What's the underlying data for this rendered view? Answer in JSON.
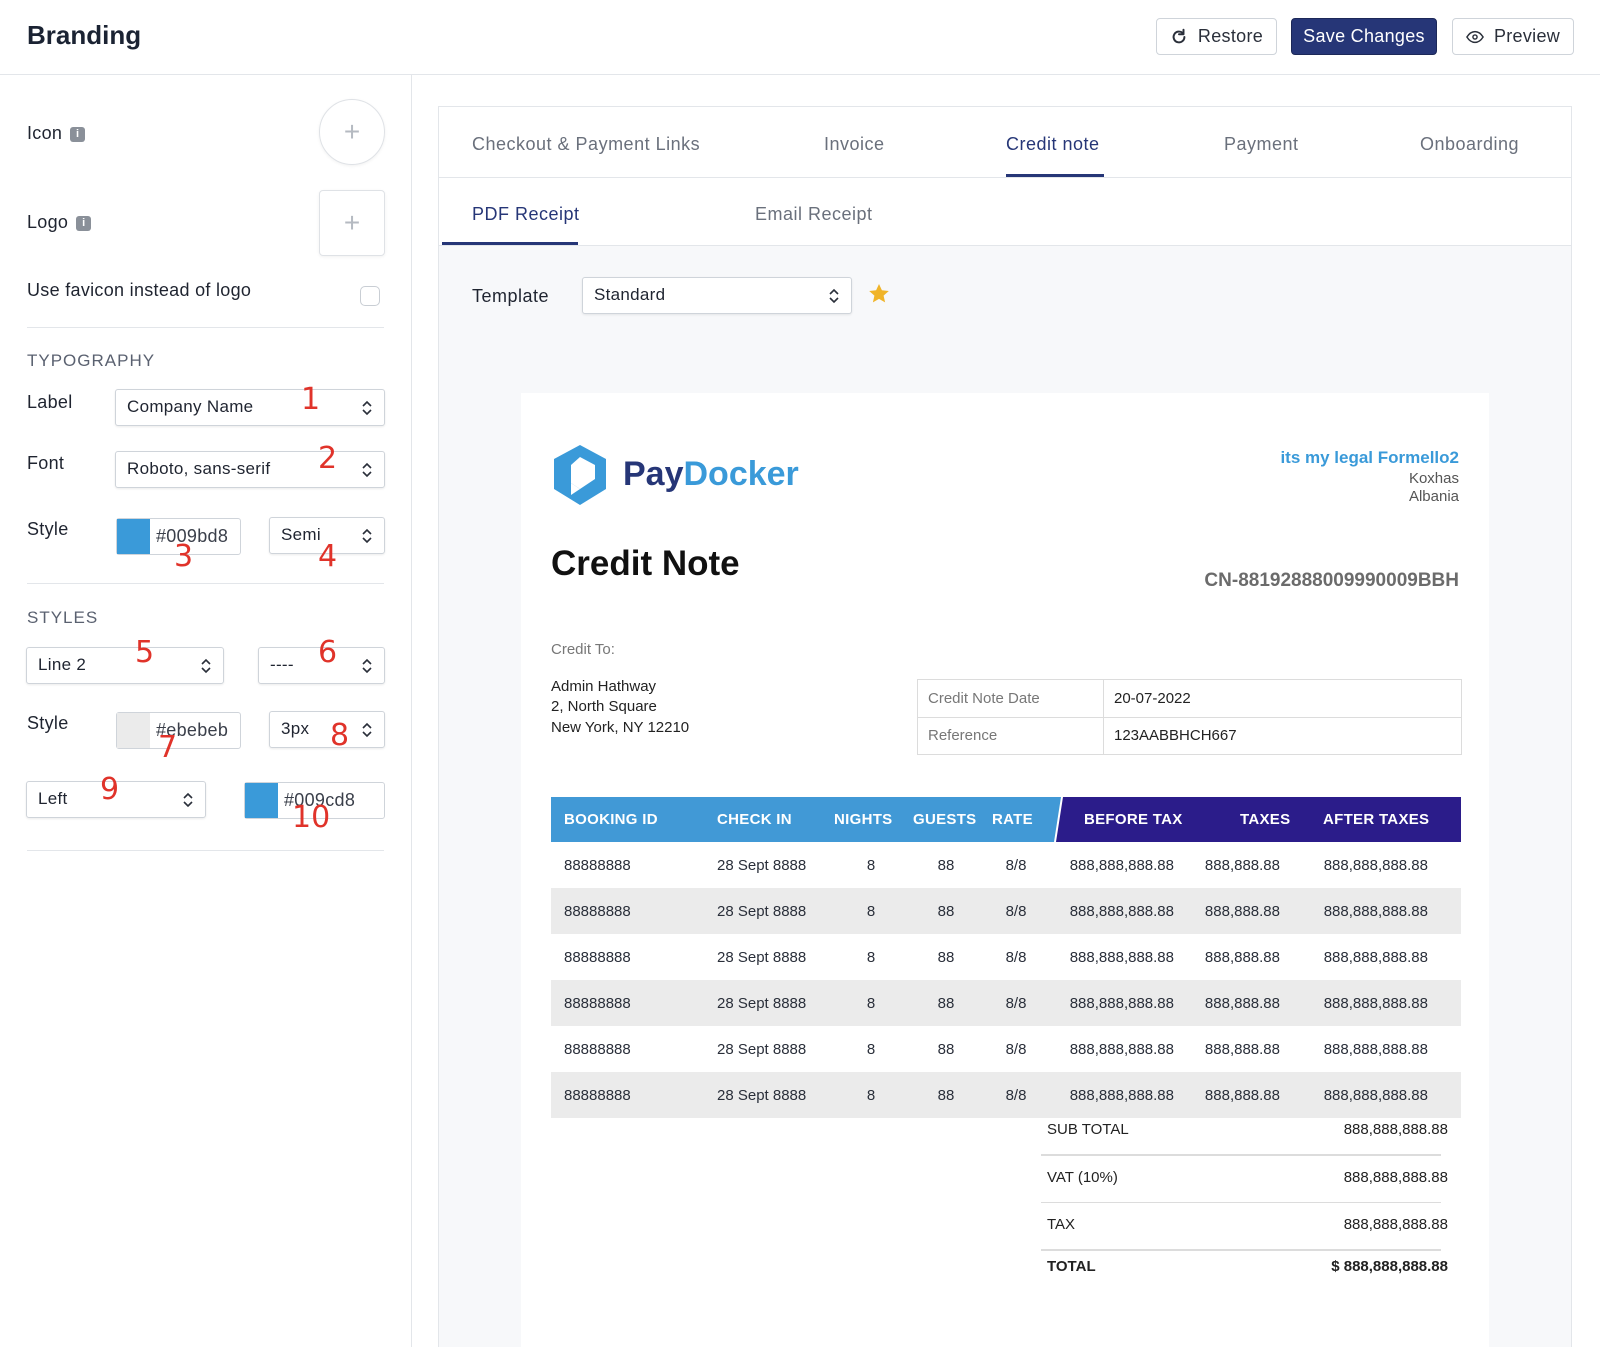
{
  "header": {
    "title": "Branding",
    "restore_label": "Restore",
    "save_label": "Save Changes",
    "preview_label": "Preview"
  },
  "left": {
    "icon_label": "Icon",
    "logo_label": "Logo",
    "favicon_label": "Use favicon instead of logo",
    "favicon_checked": false,
    "typography": {
      "heading": "TYPOGRAPHY",
      "label_label": "Label",
      "label_value": "Company Name",
      "font_label": "Font",
      "font_value": "Roboto, sans-serif",
      "style_label": "Style",
      "color_hex": "#009bd8",
      "weight_value": "Semi"
    },
    "styles": {
      "heading": "STYLES",
      "line_value": "Line 2",
      "dash_value": "----",
      "style_label": "Style",
      "color_hex": "#ebebeb",
      "width_value": "3px",
      "align_value": "Left",
      "color2_hex": "#009cd8"
    },
    "annotations": [
      "1",
      "2",
      "3",
      "4",
      "5",
      "6",
      "7",
      "8",
      "9",
      "10"
    ]
  },
  "tabs": [
    "Checkout & Payment Links",
    "Invoice",
    "Credit note",
    "Payment",
    "Onboarding"
  ],
  "active_tab": "Credit note",
  "subtabs": [
    "PDF Receipt",
    "Email Receipt"
  ],
  "active_subtab": "PDF Receipt",
  "template": {
    "label": "Template",
    "value": "Standard"
  },
  "document": {
    "brand_pay": "Pay",
    "brand_docker": "Docker",
    "company": "its my legal Formello2",
    "city": "Koxhas",
    "country": "Albania",
    "title": "Credit Note",
    "number": "CN-88192888009990009BBH",
    "credit_to_label": "Credit To:",
    "recipient": [
      "Admin Hathway",
      "2, North Square",
      "New York, NY 12210"
    ],
    "meta": [
      {
        "label": "Credit Note Date",
        "value": "20-07-2022"
      },
      {
        "label": "Reference",
        "value": "123AABBHCH667"
      }
    ],
    "columns": [
      "BOOKING ID",
      "CHECK IN",
      "NIGHTS",
      "GUESTS",
      "RATE",
      "BEFORE TAX",
      "TAXES",
      "AFTER TAXES"
    ],
    "rows": [
      [
        "88888888",
        "28 Sept 8888",
        "8",
        "88",
        "8/8",
        "888,888,888.88",
        "888,888.88",
        "888,888,888.88"
      ],
      [
        "88888888",
        "28 Sept 8888",
        "8",
        "88",
        "8/8",
        "888,888,888.88",
        "888,888.88",
        "888,888,888.88"
      ],
      [
        "88888888",
        "28 Sept 8888",
        "8",
        "88",
        "8/8",
        "888,888,888.88",
        "888,888.88",
        "888,888,888.88"
      ],
      [
        "88888888",
        "28 Sept 8888",
        "8",
        "88",
        "8/8",
        "888,888,888.88",
        "888,888.88",
        "888,888,888.88"
      ],
      [
        "88888888",
        "28 Sept 8888",
        "8",
        "88",
        "8/8",
        "888,888,888.88",
        "888,888.88",
        "888,888,888.88"
      ],
      [
        "88888888",
        "28 Sept 8888",
        "8",
        "88",
        "8/8",
        "888,888,888.88",
        "888,888.88",
        "888,888,888.88"
      ]
    ],
    "totals": [
      {
        "label": "SUB TOTAL",
        "value": "888,888,888.88"
      },
      {
        "label": "VAT (10%)",
        "value": "888,888,888.88"
      },
      {
        "label": "TAX",
        "value": "888,888,888.88"
      },
      {
        "label": "TOTAL",
        "value": "$ 888,888,888.88"
      }
    ]
  },
  "colors": {
    "primary": "#263677",
    "accent": "#3a9ad9",
    "table_left_header": "#4199d6",
    "table_right_header": "#2b1c8a",
    "row_alt": "#ebebeb",
    "annotation": "#e0332a",
    "star": "#f0b429"
  }
}
